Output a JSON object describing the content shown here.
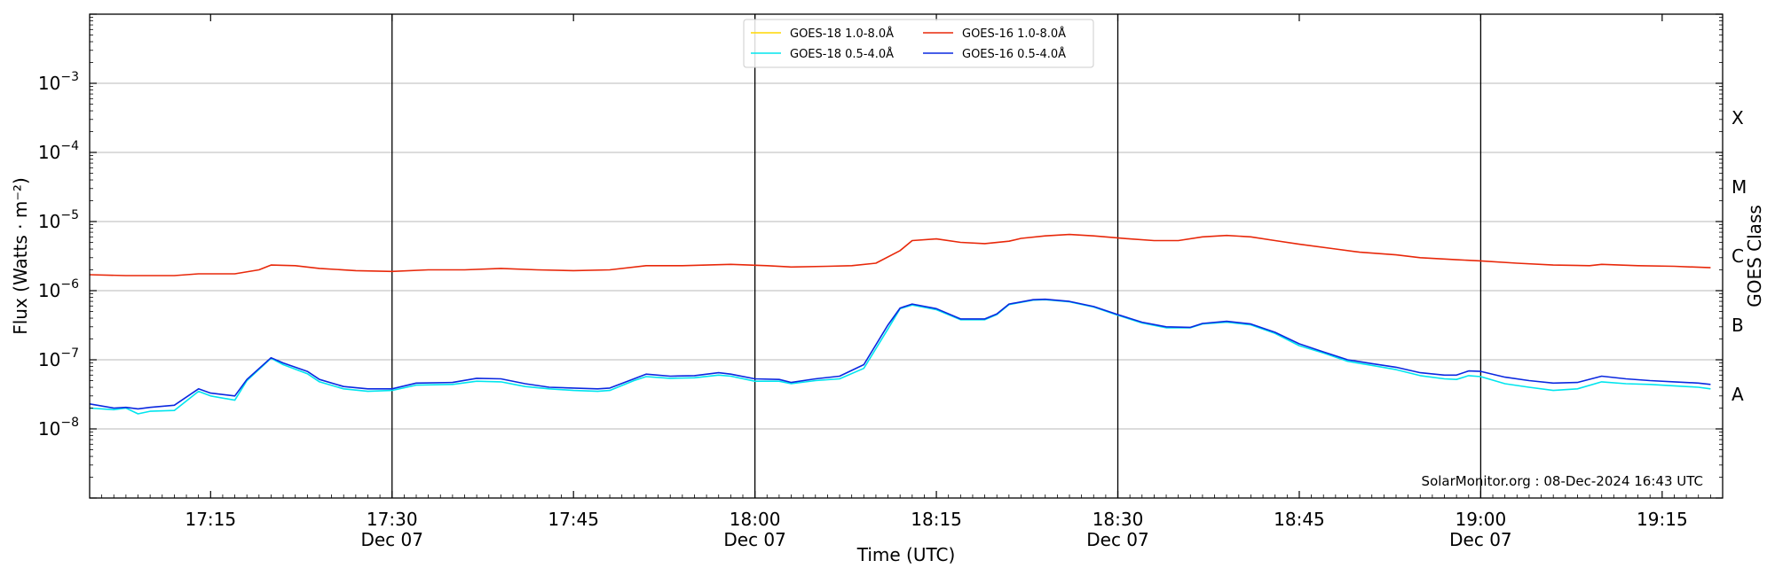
{
  "chart_data": {
    "type": "line",
    "xlabel": "Time (UTC)",
    "ylabel_left": "Flux (Watts · m⁻²)",
    "ylabel_right": "GOES Class",
    "y_scale": "log",
    "ylim": [
      1e-09,
      0.01
    ],
    "xlim": [
      "17:05",
      "19:20"
    ],
    "x_ticks": [
      {
        "time": "17:15",
        "label": "17:15",
        "sublabel": ""
      },
      {
        "time": "17:30",
        "label": "17:30",
        "sublabel": "Dec 07"
      },
      {
        "time": "17:45",
        "label": "17:45",
        "sublabel": ""
      },
      {
        "time": "18:00",
        "label": "18:00",
        "sublabel": "Dec 07"
      },
      {
        "time": "18:15",
        "label": "18:15",
        "sublabel": ""
      },
      {
        "time": "18:30",
        "label": "18:30",
        "sublabel": "Dec 07"
      },
      {
        "time": "18:45",
        "label": "18:45",
        "sublabel": ""
      },
      {
        "time": "19:00",
        "label": "19:00",
        "sublabel": "Dec 07"
      },
      {
        "time": "19:15",
        "label": "19:15",
        "sublabel": ""
      }
    ],
    "vertical_lines": [
      "17:30",
      "18:00",
      "18:30",
      "19:00"
    ],
    "y_ticks": [
      {
        "exp": -8,
        "label": "10"
      },
      {
        "exp": -7,
        "label": "10"
      },
      {
        "exp": -6,
        "label": "10"
      },
      {
        "exp": -5,
        "label": "10"
      },
      {
        "exp": -4,
        "label": "10"
      },
      {
        "exp": -3,
        "label": "10"
      }
    ],
    "gridlines_y": [
      1e-08,
      1e-07,
      1e-06,
      1e-05,
      0.0001,
      0.001
    ],
    "goes_classes": [
      {
        "label": "A",
        "exp": -7.5
      },
      {
        "label": "B",
        "exp": -6.5
      },
      {
        "label": "C",
        "exp": -5.5
      },
      {
        "label": "M",
        "exp": -4.5
      },
      {
        "label": "X",
        "exp": -3.5
      }
    ],
    "legend": {
      "placement": "top-center",
      "entries": [
        {
          "name": "GOES-18 1.0-8.0Å",
          "color": "#ffd700"
        },
        {
          "name": "GOES-18 0.5-4.0Å",
          "color": "#00e5ee"
        },
        {
          "name": "GOES-16 1.0-8.0Å",
          "color": "#e8280a"
        },
        {
          "name": "GOES-16 0.5-4.0Å",
          "color": "#0a28e0"
        }
      ]
    },
    "series": [
      {
        "name": "GOES-18 1.0-8.0Å",
        "color": "#ffd700",
        "points": []
      },
      {
        "name": "GOES-18 0.5-4.0Å",
        "color": "#00e5ee",
        "points": [
          [
            "17:05",
            2e-08
          ],
          [
            "17:07",
            1.9e-08
          ],
          [
            "17:08",
            2e-08
          ],
          [
            "17:09",
            1.65e-08
          ],
          [
            "17:10",
            1.8e-08
          ],
          [
            "17:12",
            1.85e-08
          ],
          [
            "17:14",
            3.5e-08
          ],
          [
            "17:15",
            3e-08
          ],
          [
            "17:17",
            2.6e-08
          ],
          [
            "17:18",
            5e-08
          ],
          [
            "17:20",
            1.05e-07
          ],
          [
            "17:21",
            8.5e-08
          ],
          [
            "17:23",
            6.3e-08
          ],
          [
            "17:24",
            4.8e-08
          ],
          [
            "17:26",
            3.8e-08
          ],
          [
            "17:28",
            3.5e-08
          ],
          [
            "17:30",
            3.6e-08
          ],
          [
            "17:32",
            4.3e-08
          ],
          [
            "17:35",
            4.4e-08
          ],
          [
            "17:37",
            4.9e-08
          ],
          [
            "17:39",
            4.8e-08
          ],
          [
            "17:41",
            4.1e-08
          ],
          [
            "17:43",
            3.8e-08
          ],
          [
            "17:45",
            3.6e-08
          ],
          [
            "17:47",
            3.5e-08
          ],
          [
            "17:48",
            3.6e-08
          ],
          [
            "17:50",
            5e-08
          ],
          [
            "17:51",
            5.7e-08
          ],
          [
            "17:53",
            5.4e-08
          ],
          [
            "17:55",
            5.5e-08
          ],
          [
            "17:57",
            6e-08
          ],
          [
            "17:58",
            5.8e-08
          ],
          [
            "18:00",
            4.9e-08
          ],
          [
            "18:02",
            4.9e-08
          ],
          [
            "18:03",
            4.5e-08
          ],
          [
            "18:05",
            5e-08
          ],
          [
            "18:07",
            5.3e-08
          ],
          [
            "18:09",
            7.5e-08
          ],
          [
            "18:11",
            2.8e-07
          ],
          [
            "18:12",
            5.5e-07
          ],
          [
            "18:13",
            6.2e-07
          ],
          [
            "18:15",
            5.3e-07
          ],
          [
            "18:17",
            3.8e-07
          ],
          [
            "18:19",
            3.8e-07
          ],
          [
            "18:20",
            4.5e-07
          ],
          [
            "18:21",
            6.3e-07
          ],
          [
            "18:23",
            7.3e-07
          ],
          [
            "18:24",
            7.4e-07
          ],
          [
            "18:26",
            6.9e-07
          ],
          [
            "18:28",
            5.8e-07
          ],
          [
            "18:30",
            4.4e-07
          ],
          [
            "18:32",
            3.4e-07
          ],
          [
            "18:34",
            2.9e-07
          ],
          [
            "18:36",
            2.9e-07
          ],
          [
            "18:37",
            3.3e-07
          ],
          [
            "18:39",
            3.5e-07
          ],
          [
            "18:41",
            3.2e-07
          ],
          [
            "18:43",
            2.4e-07
          ],
          [
            "18:45",
            1.6e-07
          ],
          [
            "18:47",
            1.25e-07
          ],
          [
            "18:49",
            9.5e-08
          ],
          [
            "18:51",
            8.3e-08
          ],
          [
            "18:53",
            7.2e-08
          ],
          [
            "18:55",
            5.9e-08
          ],
          [
            "18:57",
            5.3e-08
          ],
          [
            "18:58",
            5.2e-08
          ],
          [
            "18:59",
            5.9e-08
          ],
          [
            "19:00",
            5.7e-08
          ],
          [
            "19:02",
            4.5e-08
          ],
          [
            "19:04",
            4e-08
          ],
          [
            "19:06",
            3.6e-08
          ],
          [
            "19:08",
            3.8e-08
          ],
          [
            "19:10",
            4.8e-08
          ],
          [
            "19:12",
            4.5e-08
          ],
          [
            "19:14",
            4.4e-08
          ],
          [
            "19:16",
            4.2e-08
          ],
          [
            "19:18",
            4e-08
          ],
          [
            "19:19",
            3.8e-08
          ]
        ]
      },
      {
        "name": "GOES-16 1.0-8.0Å",
        "color": "#e8280a",
        "points": [
          [
            "17:05",
            1.7e-06
          ],
          [
            "17:08",
            1.65e-06
          ],
          [
            "17:12",
            1.65e-06
          ],
          [
            "17:14",
            1.75e-06
          ],
          [
            "17:17",
            1.75e-06
          ],
          [
            "17:19",
            2e-06
          ],
          [
            "17:20",
            2.35e-06
          ],
          [
            "17:22",
            2.3e-06
          ],
          [
            "17:24",
            2.1e-06
          ],
          [
            "17:27",
            1.95e-06
          ],
          [
            "17:30",
            1.9e-06
          ],
          [
            "17:33",
            2e-06
          ],
          [
            "17:36",
            2e-06
          ],
          [
            "17:39",
            2.1e-06
          ],
          [
            "17:42",
            2e-06
          ],
          [
            "17:45",
            1.95e-06
          ],
          [
            "17:48",
            2e-06
          ],
          [
            "17:51",
            2.3e-06
          ],
          [
            "17:54",
            2.3e-06
          ],
          [
            "17:58",
            2.4e-06
          ],
          [
            "18:01",
            2.3e-06
          ],
          [
            "18:03",
            2.2e-06
          ],
          [
            "18:06",
            2.25e-06
          ],
          [
            "18:08",
            2.3e-06
          ],
          [
            "18:10",
            2.5e-06
          ],
          [
            "18:12",
            3.8e-06
          ],
          [
            "18:13",
            5.3e-06
          ],
          [
            "18:15",
            5.6e-06
          ],
          [
            "18:17",
            5e-06
          ],
          [
            "18:19",
            4.8e-06
          ],
          [
            "18:21",
            5.2e-06
          ],
          [
            "18:22",
            5.7e-06
          ],
          [
            "18:24",
            6.2e-06
          ],
          [
            "18:26",
            6.5e-06
          ],
          [
            "18:28",
            6.2e-06
          ],
          [
            "18:31",
            5.6e-06
          ],
          [
            "18:33",
            5.3e-06
          ],
          [
            "18:35",
            5.3e-06
          ],
          [
            "18:37",
            6e-06
          ],
          [
            "18:39",
            6.3e-06
          ],
          [
            "18:41",
            6e-06
          ],
          [
            "18:43",
            5.3e-06
          ],
          [
            "18:45",
            4.7e-06
          ],
          [
            "18:48",
            4e-06
          ],
          [
            "18:50",
            3.6e-06
          ],
          [
            "18:53",
            3.3e-06
          ],
          [
            "18:55",
            3e-06
          ],
          [
            "18:58",
            2.8e-06
          ],
          [
            "19:00",
            2.7e-06
          ],
          [
            "19:03",
            2.5e-06
          ],
          [
            "19:06",
            2.35e-06
          ],
          [
            "19:09",
            2.3e-06
          ],
          [
            "19:10",
            2.4e-06
          ],
          [
            "19:13",
            2.3e-06
          ],
          [
            "19:16",
            2.25e-06
          ],
          [
            "19:19",
            2.15e-06
          ]
        ]
      },
      {
        "name": "GOES-16 0.5-4.0Å",
        "color": "#0a28e0",
        "points": [
          [
            "17:05",
            2.3e-08
          ],
          [
            "17:07",
            2e-08
          ],
          [
            "17:08",
            2.05e-08
          ],
          [
            "17:09",
            1.95e-08
          ],
          [
            "17:10",
            2.05e-08
          ],
          [
            "17:12",
            2.2e-08
          ],
          [
            "17:14",
            3.8e-08
          ],
          [
            "17:15",
            3.3e-08
          ],
          [
            "17:17",
            3e-08
          ],
          [
            "17:18",
            5.2e-08
          ],
          [
            "17:20",
            1.07e-07
          ],
          [
            "17:21",
            9e-08
          ],
          [
            "17:23",
            6.8e-08
          ],
          [
            "17:24",
            5.2e-08
          ],
          [
            "17:26",
            4.1e-08
          ],
          [
            "17:28",
            3.8e-08
          ],
          [
            "17:30",
            3.8e-08
          ],
          [
            "17:32",
            4.6e-08
          ],
          [
            "17:35",
            4.7e-08
          ],
          [
            "17:37",
            5.4e-08
          ],
          [
            "17:39",
            5.3e-08
          ],
          [
            "17:41",
            4.5e-08
          ],
          [
            "17:43",
            4e-08
          ],
          [
            "17:45",
            3.9e-08
          ],
          [
            "17:47",
            3.8e-08
          ],
          [
            "17:48",
            3.9e-08
          ],
          [
            "17:50",
            5.3e-08
          ],
          [
            "17:51",
            6.2e-08
          ],
          [
            "17:53",
            5.8e-08
          ],
          [
            "17:55",
            5.9e-08
          ],
          [
            "17:57",
            6.5e-08
          ],
          [
            "17:58",
            6.2e-08
          ],
          [
            "18:00",
            5.3e-08
          ],
          [
            "18:02",
            5.2e-08
          ],
          [
            "18:03",
            4.7e-08
          ],
          [
            "18:05",
            5.3e-08
          ],
          [
            "18:07",
            5.8e-08
          ],
          [
            "18:09",
            8.5e-08
          ],
          [
            "18:11",
            3.2e-07
          ],
          [
            "18:12",
            5.6e-07
          ],
          [
            "18:13",
            6.4e-07
          ],
          [
            "18:15",
            5.5e-07
          ],
          [
            "18:17",
            3.9e-07
          ],
          [
            "18:19",
            3.9e-07
          ],
          [
            "18:20",
            4.6e-07
          ],
          [
            "18:21",
            6.4e-07
          ],
          [
            "18:23",
            7.4e-07
          ],
          [
            "18:24",
            7.5e-07
          ],
          [
            "18:26",
            7e-07
          ],
          [
            "18:28",
            5.9e-07
          ],
          [
            "18:30",
            4.5e-07
          ],
          [
            "18:32",
            3.5e-07
          ],
          [
            "18:34",
            3e-07
          ],
          [
            "18:36",
            2.95e-07
          ],
          [
            "18:37",
            3.35e-07
          ],
          [
            "18:39",
            3.6e-07
          ],
          [
            "18:41",
            3.3e-07
          ],
          [
            "18:43",
            2.5e-07
          ],
          [
            "18:45",
            1.7e-07
          ],
          [
            "18:47",
            1.3e-07
          ],
          [
            "18:49",
            1e-07
          ],
          [
            "18:51",
            8.8e-08
          ],
          [
            "18:53",
            7.8e-08
          ],
          [
            "18:55",
            6.5e-08
          ],
          [
            "18:57",
            6e-08
          ],
          [
            "18:58",
            6e-08
          ],
          [
            "18:59",
            6.9e-08
          ],
          [
            "19:00",
            6.8e-08
          ],
          [
            "19:02",
            5.6e-08
          ],
          [
            "19:04",
            5e-08
          ],
          [
            "19:06",
            4.6e-08
          ],
          [
            "19:08",
            4.7e-08
          ],
          [
            "19:10",
            5.8e-08
          ],
          [
            "19:12",
            5.3e-08
          ],
          [
            "19:14",
            5e-08
          ],
          [
            "19:16",
            4.8e-08
          ],
          [
            "19:18",
            4.6e-08
          ],
          [
            "19:19",
            4.4e-08
          ]
        ]
      }
    ],
    "stamp": "SolarMonitor.org : 08-Dec-2024 16:43 UTC"
  }
}
